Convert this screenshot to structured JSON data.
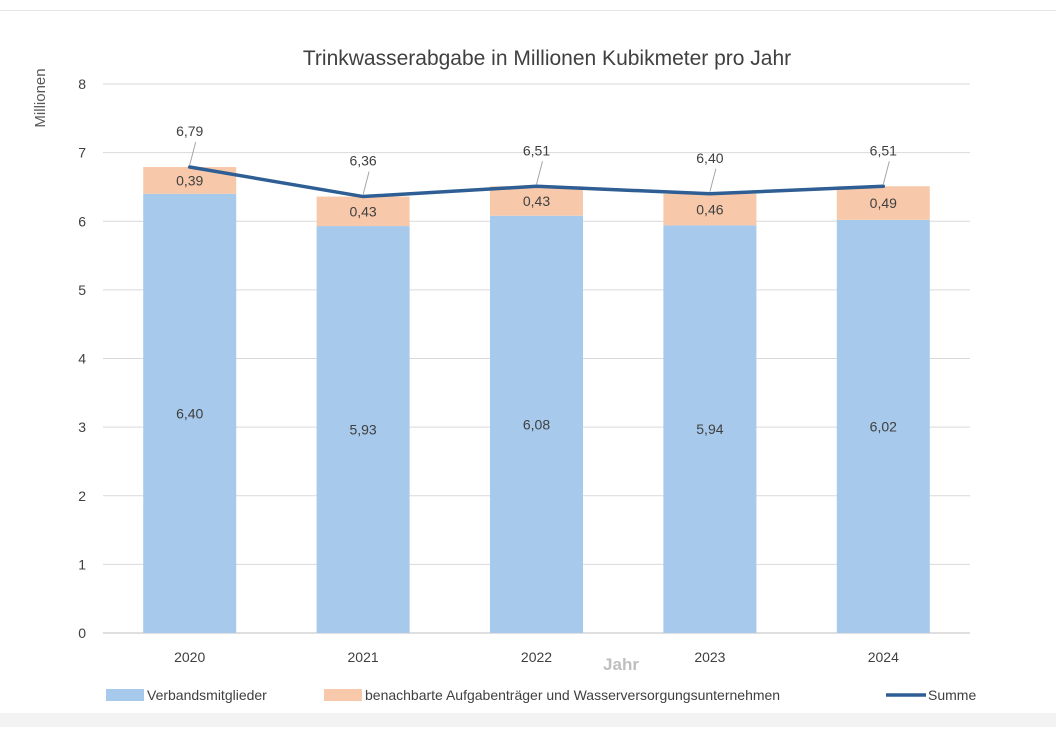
{
  "chart_data": {
    "type": "bar",
    "stacked": true,
    "title": "Trinkwasserabgabe in Millionen Kubikmeter pro Jahr",
    "xlabel": "Jahr",
    "ylabel": "Millionen",
    "ylim": [
      0,
      8
    ],
    "yticks": [
      "0",
      "1",
      "2",
      "3",
      "4",
      "5",
      "6",
      "7",
      "8"
    ],
    "grid": true,
    "legend_position": "bottom",
    "categories": [
      "2020",
      "2021",
      "2022",
      "2023",
      "2024"
    ],
    "series": [
      {
        "name": "Verbandsmitglieder",
        "kind": "bar",
        "color": "#a7c9eb",
        "values": [
          6.4,
          5.93,
          6.08,
          5.94,
          6.02
        ],
        "labels": [
          "6,40",
          "5,93",
          "6,08",
          "5,94",
          "6,02"
        ]
      },
      {
        "name": "benachbarte Aufgabenträger und Wasserversorgungsunternehmen",
        "kind": "bar",
        "color": "#f7c9aa",
        "values": [
          0.39,
          0.43,
          0.43,
          0.46,
          0.49
        ],
        "labels": [
          "0,39",
          "0,43",
          "0,43",
          "0,46",
          "0,49"
        ]
      },
      {
        "name": "Summe",
        "kind": "line",
        "color": "#2e5e93",
        "values": [
          6.79,
          6.36,
          6.51,
          6.4,
          6.51
        ],
        "labels": [
          "6,79",
          "6,36",
          "6,51",
          "6,40",
          "6,51"
        ]
      }
    ]
  }
}
